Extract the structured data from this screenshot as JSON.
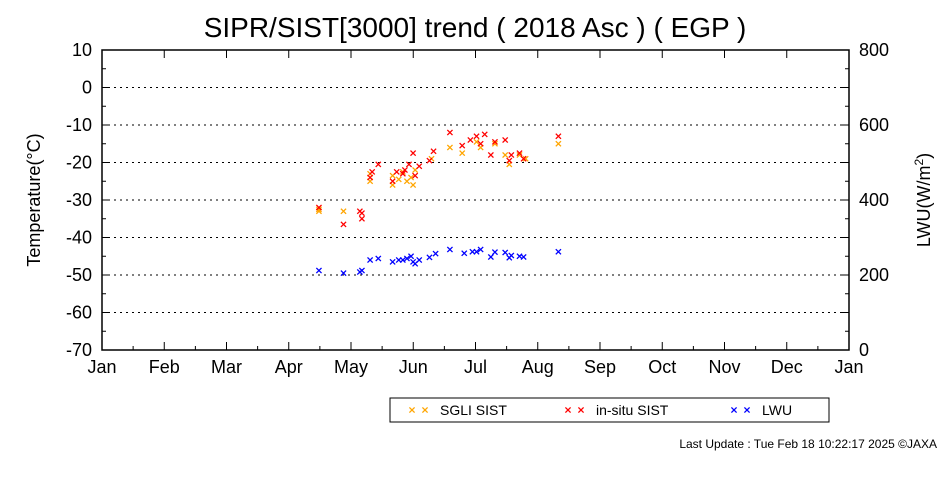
{
  "chart_data": {
    "type": "scatter",
    "title": "SIPR/SIST[3000] trend ( 2018 Asc ) ( EGP )",
    "ylabel": "Temperature(°C)",
    "y2label_main": "LWU(W/m",
    "y2label_sup": "2",
    "y2label_end": ")",
    "ylim": [
      -70,
      10
    ],
    "y2lim": [
      0,
      800
    ],
    "yticks": [
      "10",
      "0",
      "-10",
      "-20",
      "-30",
      "-40",
      "-50",
      "-60",
      "-70"
    ],
    "y2ticks": [
      "800",
      "600",
      "400",
      "200",
      "0"
    ],
    "xticks": [
      "Jan",
      "Feb",
      "Mar",
      "Apr",
      "May",
      "Jun",
      "Jul",
      "Aug",
      "Sep",
      "Oct",
      "Nov",
      "Dec",
      "Jan"
    ],
    "grid": "horizontal dotted",
    "legend_placement": "bottom",
    "series": [
      {
        "name": "SGLI SIST",
        "color": "#ffa500",
        "axis": "left",
        "x": [
          "2018-04-17",
          "2018-04-17",
          "2018-04-29",
          "2018-05-12",
          "2018-05-12",
          "2018-05-23",
          "2018-05-23",
          "2018-05-26",
          "2018-05-28",
          "2018-05-30",
          "2018-06-01",
          "2018-06-02",
          "2018-06-03",
          "2018-06-11",
          "2018-06-20",
          "2018-06-26",
          "2018-07-03",
          "2018-07-05",
          "2018-07-12",
          "2018-07-17",
          "2018-07-19",
          "2018-07-24",
          "2018-07-27",
          "2018-08-12"
        ],
        "y": [
          -32.5,
          -33.0,
          -33.0,
          -25.0,
          -23.0,
          -26.0,
          -23.5,
          -24.5,
          -22.5,
          -25.0,
          -24.0,
          -26.0,
          -22.0,
          -19.0,
          -16.0,
          -17.5,
          -14.5,
          -16.0,
          -15.0,
          -18.0,
          -20.5,
          -18.0,
          -19.0,
          -15.0
        ]
      },
      {
        "name": "in-situ SIST",
        "color": "#ff0000",
        "axis": "left",
        "x": [
          "2018-04-17",
          "2018-04-29",
          "2018-05-07",
          "2018-05-08",
          "2018-05-08",
          "2018-05-12",
          "2018-05-13",
          "2018-05-16",
          "2018-05-23",
          "2018-05-25",
          "2018-05-28",
          "2018-05-29",
          "2018-05-31",
          "2018-06-02",
          "2018-06-03",
          "2018-06-05",
          "2018-06-10",
          "2018-06-12",
          "2018-06-20",
          "2018-06-26",
          "2018-06-30",
          "2018-07-03",
          "2018-07-05",
          "2018-07-07",
          "2018-07-10",
          "2018-07-12",
          "2018-07-17",
          "2018-07-19",
          "2018-07-20",
          "2018-07-24",
          "2018-07-26",
          "2018-08-12"
        ],
        "y": [
          -32.0,
          -36.5,
          -33.0,
          -35.0,
          -33.5,
          -24.0,
          -22.5,
          -20.5,
          -25.0,
          -22.5,
          -23.0,
          -22.0,
          -20.5,
          -17.5,
          -23.5,
          -21.0,
          -19.5,
          -17.0,
          -12.0,
          -15.5,
          -14.0,
          -13.0,
          -15.0,
          -12.5,
          -18.0,
          -14.5,
          -14.0,
          -19.5,
          -18.0,
          -17.5,
          -19.0,
          -13.0
        ]
      },
      {
        "name": "LWU",
        "color": "#0000ff",
        "axis": "right",
        "x": [
          "2018-04-17",
          "2018-04-29",
          "2018-05-07",
          "2018-05-08",
          "2018-05-12",
          "2018-05-16",
          "2018-05-23",
          "2018-05-26",
          "2018-05-28",
          "2018-05-30",
          "2018-06-01",
          "2018-06-02",
          "2018-06-03",
          "2018-06-05",
          "2018-06-10",
          "2018-06-13",
          "2018-06-20",
          "2018-06-27",
          "2018-07-01",
          "2018-07-03",
          "2018-07-05",
          "2018-07-10",
          "2018-07-12",
          "2018-07-17",
          "2018-07-19",
          "2018-07-20",
          "2018-07-24",
          "2018-07-26",
          "2018-08-12"
        ],
        "y": [
          212,
          205,
          208,
          212,
          240,
          244,
          235,
          240,
          240,
          244,
          250,
          235,
          230,
          240,
          247,
          257,
          268,
          258,
          262,
          262,
          268,
          248,
          261,
          260,
          246,
          252,
          250,
          248,
          262
        ]
      }
    ]
  },
  "footer": {
    "update": "Last Update : Tue Feb 18 10:22:17 2025  ©JAXA"
  }
}
